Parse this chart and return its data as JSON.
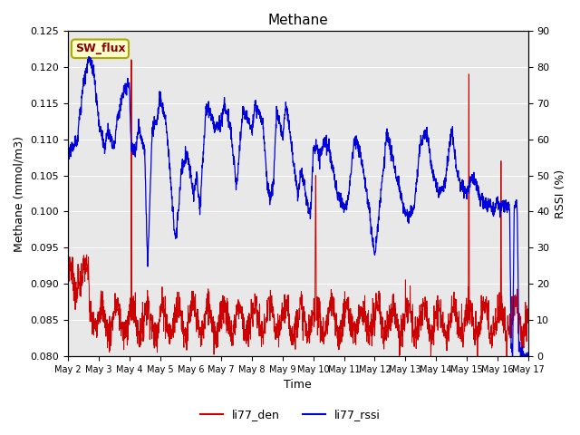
{
  "title": "Methane",
  "xlabel": "Time",
  "ylabel_left": "Methane (mmol/m3)",
  "ylabel_right": "RSSI (%)",
  "ylim_left": [
    0.08,
    0.125
  ],
  "ylim_right": [
    0,
    90
  ],
  "xlim": [
    0,
    15
  ],
  "xtick_labels": [
    "May 2",
    "May 3",
    "May 4",
    "May 5",
    "May 6",
    "May 7",
    "May 8",
    "May 9",
    "May 10",
    "May 11",
    "May 12",
    "May 13",
    "May 14",
    "May 15",
    "May 16",
    "May 17"
  ],
  "annotation_text": "SW_flux",
  "annotation_bg": "#FFFFCC",
  "annotation_border": "#AAAA00",
  "bg_color": "#E8E8E8",
  "line_red_color": "#CC0000",
  "line_blue_color": "#0000DD",
  "legend_labels": [
    "li77_den",
    "li77_rssi"
  ],
  "grid_color": "#FFFFFF",
  "yticks_left": [
    0.08,
    0.085,
    0.09,
    0.095,
    0.1,
    0.105,
    0.11,
    0.115,
    0.12,
    0.125
  ],
  "yticks_right": [
    0,
    10,
    20,
    30,
    40,
    50,
    60,
    70,
    80,
    90
  ]
}
